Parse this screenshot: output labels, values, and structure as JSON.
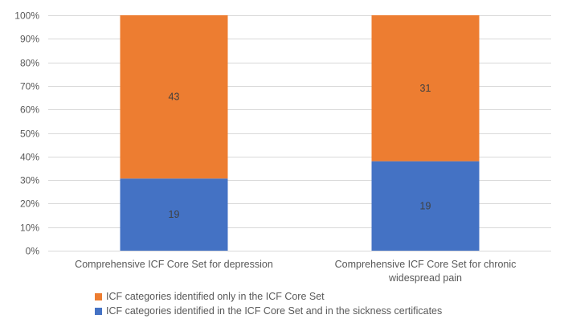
{
  "chart_data": {
    "type": "bar",
    "stacked": "percent",
    "categories": [
      [
        "Comprehensive ICF Core Set for depression"
      ],
      [
        "Comprehensive ICF Core Set for chronic",
        "widespread pain"
      ]
    ],
    "series": [
      {
        "name": "ICF categories identified in the ICF Core Set and in the sickness certificates",
        "values": [
          19,
          19
        ],
        "data_labels": [
          "19",
          "19"
        ],
        "color": "#4472C4"
      },
      {
        "name": "ICF categories identified only in the ICF Core Set",
        "values": [
          43,
          31
        ],
        "data_labels": [
          "43",
          "31"
        ],
        "color": "#ED7D31"
      }
    ],
    "y_ticks": [
      "0%",
      "10%",
      "20%",
      "30%",
      "40%",
      "50%",
      "60%",
      "70%",
      "80%",
      "90%",
      "100%"
    ],
    "ylim": [
      0,
      100
    ],
    "grid": true,
    "gridline_color": "#D9D9D9",
    "legend_position": "bottom",
    "legend_order": [
      1,
      0
    ]
  }
}
